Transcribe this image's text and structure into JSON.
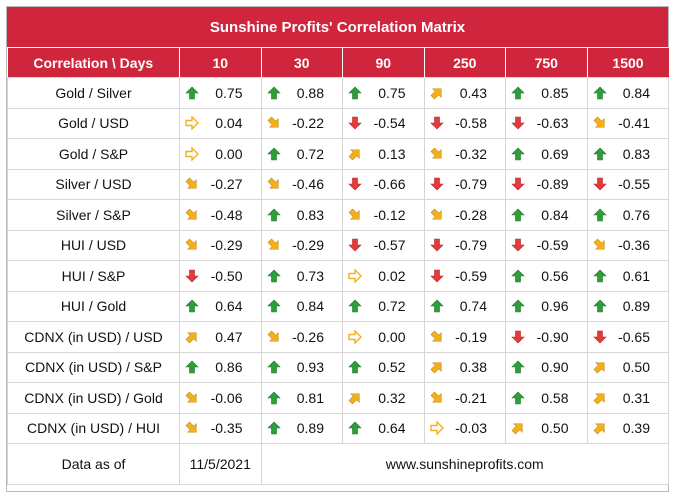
{
  "title": "Sunshine Profits' Correlation Matrix",
  "header": {
    "first": "Correlation \\ Days",
    "days": [
      "10",
      "30",
      "90",
      "250",
      "750",
      "1500"
    ]
  },
  "colors": {
    "header_bg": "#d0263d",
    "up": "#2e9e3a",
    "down": "#e23b3b",
    "diagonal": "#f2b01e",
    "flat": "#f2b01e"
  },
  "rows": [
    {
      "label": "Gold / Silver",
      "cells": [
        {
          "icon": "arrow-up-icon",
          "value": "0.75"
        },
        {
          "icon": "arrow-up-icon",
          "value": "0.88"
        },
        {
          "icon": "arrow-up-icon",
          "value": "0.75"
        },
        {
          "icon": "arrow-up-right-icon",
          "value": "0.43"
        },
        {
          "icon": "arrow-up-icon",
          "value": "0.85"
        },
        {
          "icon": "arrow-up-icon",
          "value": "0.84"
        }
      ]
    },
    {
      "label": "Gold / USD",
      "cells": [
        {
          "icon": "arrow-right-icon",
          "value": "0.04"
        },
        {
          "icon": "arrow-down-right-icon",
          "value": "-0.22"
        },
        {
          "icon": "arrow-down-icon",
          "value": "-0.54"
        },
        {
          "icon": "arrow-down-icon",
          "value": "-0.58"
        },
        {
          "icon": "arrow-down-icon",
          "value": "-0.63"
        },
        {
          "icon": "arrow-down-right-icon",
          "value": "-0.41"
        }
      ]
    },
    {
      "label": "Gold / S&P",
      "cells": [
        {
          "icon": "arrow-right-icon",
          "value": "0.00"
        },
        {
          "icon": "arrow-up-icon",
          "value": "0.72"
        },
        {
          "icon": "arrow-up-right-icon",
          "value": "0.13"
        },
        {
          "icon": "arrow-down-right-icon",
          "value": "-0.32"
        },
        {
          "icon": "arrow-up-icon",
          "value": "0.69"
        },
        {
          "icon": "arrow-up-icon",
          "value": "0.83"
        }
      ]
    },
    {
      "label": "Silver / USD",
      "cells": [
        {
          "icon": "arrow-down-right-icon",
          "value": "-0.27"
        },
        {
          "icon": "arrow-down-right-icon",
          "value": "-0.46"
        },
        {
          "icon": "arrow-down-icon",
          "value": "-0.66"
        },
        {
          "icon": "arrow-down-icon",
          "value": "-0.79"
        },
        {
          "icon": "arrow-down-icon",
          "value": "-0.89"
        },
        {
          "icon": "arrow-down-icon",
          "value": "-0.55"
        }
      ]
    },
    {
      "label": "Silver / S&P",
      "cells": [
        {
          "icon": "arrow-down-right-icon",
          "value": "-0.48"
        },
        {
          "icon": "arrow-up-icon",
          "value": "0.83"
        },
        {
          "icon": "arrow-down-right-icon",
          "value": "-0.12"
        },
        {
          "icon": "arrow-down-right-icon",
          "value": "-0.28"
        },
        {
          "icon": "arrow-up-icon",
          "value": "0.84"
        },
        {
          "icon": "arrow-up-icon",
          "value": "0.76"
        }
      ]
    },
    {
      "label": "HUI / USD",
      "cells": [
        {
          "icon": "arrow-down-right-icon",
          "value": "-0.29"
        },
        {
          "icon": "arrow-down-right-icon",
          "value": "-0.29"
        },
        {
          "icon": "arrow-down-icon",
          "value": "-0.57"
        },
        {
          "icon": "arrow-down-icon",
          "value": "-0.79"
        },
        {
          "icon": "arrow-down-icon",
          "value": "-0.59"
        },
        {
          "icon": "arrow-down-right-icon",
          "value": "-0.36"
        }
      ]
    },
    {
      "label": "HUI / S&P",
      "cells": [
        {
          "icon": "arrow-down-icon",
          "value": "-0.50"
        },
        {
          "icon": "arrow-up-icon",
          "value": "0.73"
        },
        {
          "icon": "arrow-right-icon",
          "value": "0.02"
        },
        {
          "icon": "arrow-down-icon",
          "value": "-0.59"
        },
        {
          "icon": "arrow-up-icon",
          "value": "0.56"
        },
        {
          "icon": "arrow-up-icon",
          "value": "0.61"
        }
      ]
    },
    {
      "label": "HUI / Gold",
      "cells": [
        {
          "icon": "arrow-up-icon",
          "value": "0.64"
        },
        {
          "icon": "arrow-up-icon",
          "value": "0.84"
        },
        {
          "icon": "arrow-up-icon",
          "value": "0.72"
        },
        {
          "icon": "arrow-up-icon",
          "value": "0.74"
        },
        {
          "icon": "arrow-up-icon",
          "value": "0.96"
        },
        {
          "icon": "arrow-up-icon",
          "value": "0.89"
        }
      ]
    },
    {
      "label": "CDNX (in USD) / USD",
      "cells": [
        {
          "icon": "arrow-up-right-icon",
          "value": "0.47"
        },
        {
          "icon": "arrow-down-right-icon",
          "value": "-0.26"
        },
        {
          "icon": "arrow-right-icon",
          "value": "0.00"
        },
        {
          "icon": "arrow-down-right-icon",
          "value": "-0.19"
        },
        {
          "icon": "arrow-down-icon",
          "value": "-0.90"
        },
        {
          "icon": "arrow-down-icon",
          "value": "-0.65"
        }
      ]
    },
    {
      "label": "CDNX (in USD) / S&P",
      "cells": [
        {
          "icon": "arrow-up-icon",
          "value": "0.86"
        },
        {
          "icon": "arrow-up-icon",
          "value": "0.93"
        },
        {
          "icon": "arrow-up-icon",
          "value": "0.52"
        },
        {
          "icon": "arrow-up-right-icon",
          "value": "0.38"
        },
        {
          "icon": "arrow-up-icon",
          "value": "0.90"
        },
        {
          "icon": "arrow-up-right-icon",
          "value": "0.50"
        }
      ]
    },
    {
      "label": "CDNX (in USD) / Gold",
      "cells": [
        {
          "icon": "arrow-down-right-icon",
          "value": "-0.06"
        },
        {
          "icon": "arrow-up-icon",
          "value": "0.81"
        },
        {
          "icon": "arrow-up-right-icon",
          "value": "0.32"
        },
        {
          "icon": "arrow-down-right-icon",
          "value": "-0.21"
        },
        {
          "icon": "arrow-up-icon",
          "value": "0.58"
        },
        {
          "icon": "arrow-up-right-icon",
          "value": "0.31"
        }
      ]
    },
    {
      "label": "CDNX (in USD) / HUI",
      "cells": [
        {
          "icon": "arrow-down-right-icon",
          "value": "-0.35"
        },
        {
          "icon": "arrow-up-icon",
          "value": "0.89"
        },
        {
          "icon": "arrow-up-icon",
          "value": "0.64"
        },
        {
          "icon": "arrow-right-icon",
          "value": "-0.03"
        },
        {
          "icon": "arrow-up-right-icon",
          "value": "0.50"
        },
        {
          "icon": "arrow-up-right-icon",
          "value": "0.39"
        }
      ]
    }
  ],
  "footer": {
    "label": "Data as of",
    "date": "11/5/2021",
    "website": "www.sunshineprofits.com"
  }
}
